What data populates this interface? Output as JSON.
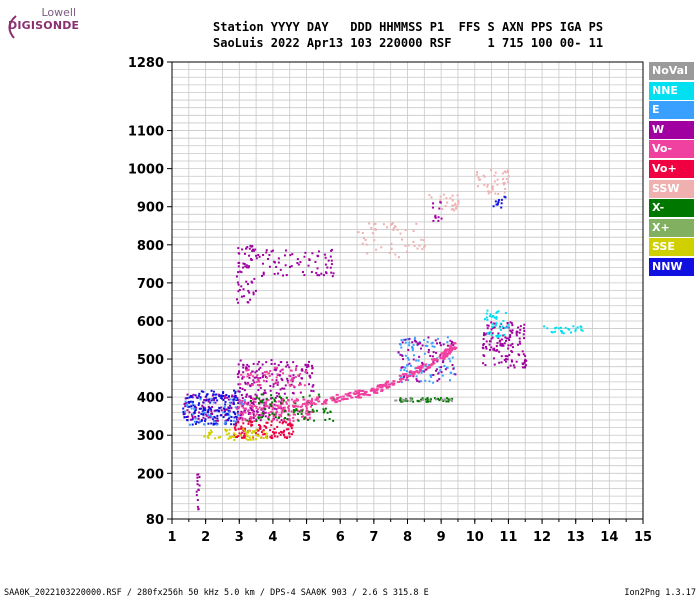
{
  "logo": {
    "brand_top": "Lowell",
    "brand_bottom": "DIGISONDE"
  },
  "header": {
    "line1": "Station YYYY DAY   DDD HHMMSS P1  FFS S AXN PPS IGA PS",
    "line2": "SaoLuis 2022 Apr13 103 220000 RSF     1 715 100 00- 11"
  },
  "legend": [
    {
      "label": "NoVal",
      "color": "#9a9a9a"
    },
    {
      "label": "NNE",
      "color": "#00e0f0"
    },
    {
      "label": "E",
      "color": "#3aa0ff"
    },
    {
      "label": "W",
      "color": "#a000a0"
    },
    {
      "label": "Vo-",
      "color": "#f040a0"
    },
    {
      "label": "Vo+",
      "color": "#f00040"
    },
    {
      "label": "SSW",
      "color": "#f0b0b0"
    },
    {
      "label": "X-",
      "color": "#007800"
    },
    {
      "label": "X+",
      "color": "#80b060"
    },
    {
      "label": "SSE",
      "color": "#d0d000"
    },
    {
      "label": "NNW",
      "color": "#1010e0"
    }
  ],
  "footer": {
    "left": "SAA0K_2022103220000.RSF / 280fx256h 50 kHz 5.0 km / DPS-4 SAA0K 903 / 2.6 S 315.8 E",
    "right": "Ion2Png 1.3.17"
  },
  "chart_data": {
    "type": "scatter",
    "x_ticks": [
      "1",
      "2",
      "3",
      "4",
      "5",
      "6",
      "7",
      "8",
      "9",
      "10",
      "11",
      "12",
      "13",
      "14",
      "15"
    ],
    "y_ticks": [
      "80",
      "200",
      "300",
      "400",
      "500",
      "600",
      "700",
      "800",
      "900",
      "1000",
      "1100",
      "1280"
    ],
    "xlim": [
      1,
      15
    ],
    "ylim": [
      80,
      1280
    ],
    "grid": true,
    "legend_position": "right",
    "clusters": [
      {
        "series": "W",
        "x": [
          1.3,
          4.3
        ],
        "y": [
          340,
          410
        ],
        "n": 200
      },
      {
        "series": "NNW",
        "x": [
          1.3,
          3.0
        ],
        "y": [
          330,
          420
        ],
        "n": 160
      },
      {
        "series": "Vo-",
        "x": [
          2.9,
          5.2
        ],
        "y": [
          340,
          400
        ],
        "n": 180
      },
      {
        "series": "Vo+",
        "x": [
          2.8,
          4.6
        ],
        "y": [
          295,
          340
        ],
        "n": 120
      },
      {
        "series": "SSE",
        "x": [
          1.9,
          3.8
        ],
        "y": [
          290,
          320
        ],
        "n": 60
      },
      {
        "series": "X-",
        "x": [
          3.2,
          5.8
        ],
        "y": [
          340,
          410
        ],
        "n": 80
      },
      {
        "series": "E",
        "x": [
          1.3,
          3.2
        ],
        "y": [
          330,
          400
        ],
        "n": 40
      },
      {
        "series": "W",
        "x": [
          2.9,
          5.2
        ],
        "y": [
          410,
          500
        ],
        "n": 140
      },
      {
        "series": "Vo-",
        "x": [
          3.0,
          5.0
        ],
        "y": [
          430,
          480
        ],
        "n": 60
      },
      {
        "series": "W",
        "x": [
          2.9,
          3.5
        ],
        "y": [
          650,
          800
        ],
        "n": 60
      },
      {
        "series": "W",
        "x": [
          3.5,
          5.8
        ],
        "y": [
          720,
          790
        ],
        "n": 70
      },
      {
        "series": "SSW",
        "x": [
          6.5,
          8.5
        ],
        "y": [
          770,
          860
        ],
        "n": 50
      },
      {
        "series": "SSW",
        "x": [
          8.6,
          9.5
        ],
        "y": [
          890,
          940
        ],
        "n": 25
      },
      {
        "series": "W",
        "x": [
          8.7,
          9.0
        ],
        "y": [
          860,
          920
        ],
        "n": 12
      },
      {
        "series": "SSW",
        "x": [
          10.0,
          11.0
        ],
        "y": [
          930,
          1000
        ],
        "n": 40
      },
      {
        "series": "NNW",
        "x": [
          10.5,
          10.9
        ],
        "y": [
          900,
          930
        ],
        "n": 12
      },
      {
        "series": "W",
        "x": [
          10.2,
          11.5
        ],
        "y": [
          480,
          600
        ],
        "n": 140
      },
      {
        "series": "NNE",
        "x": [
          10.2,
          11.0
        ],
        "y": [
          560,
          630
        ],
        "n": 40
      },
      {
        "series": "NNE",
        "x": [
          12.0,
          13.2
        ],
        "y": [
          570,
          590
        ],
        "n": 25
      },
      {
        "series": "E",
        "x": [
          7.7,
          9.4
        ],
        "y": [
          440,
          560
        ],
        "n": 90
      },
      {
        "series": "W",
        "x": [
          7.7,
          9.4
        ],
        "y": [
          440,
          560
        ],
        "n": 70
      },
      {
        "series": "X-",
        "x": [
          7.6,
          9.3
        ],
        "y": [
          390,
          400
        ],
        "n": 40
      },
      {
        "series": "NoVal",
        "x": [
          7.6,
          9.3
        ],
        "y": [
          392,
          398
        ],
        "n": 20
      },
      {
        "series": "W",
        "x": [
          1.7,
          1.8
        ],
        "y": [
          90,
          200
        ],
        "n": 15
      }
    ],
    "trace": {
      "series": "Vo-",
      "x": [
        4.5,
        6.0,
        7.0,
        8.0,
        9.0,
        9.4
      ],
      "y": [
        385,
        400,
        420,
        460,
        510,
        540
      ]
    }
  }
}
